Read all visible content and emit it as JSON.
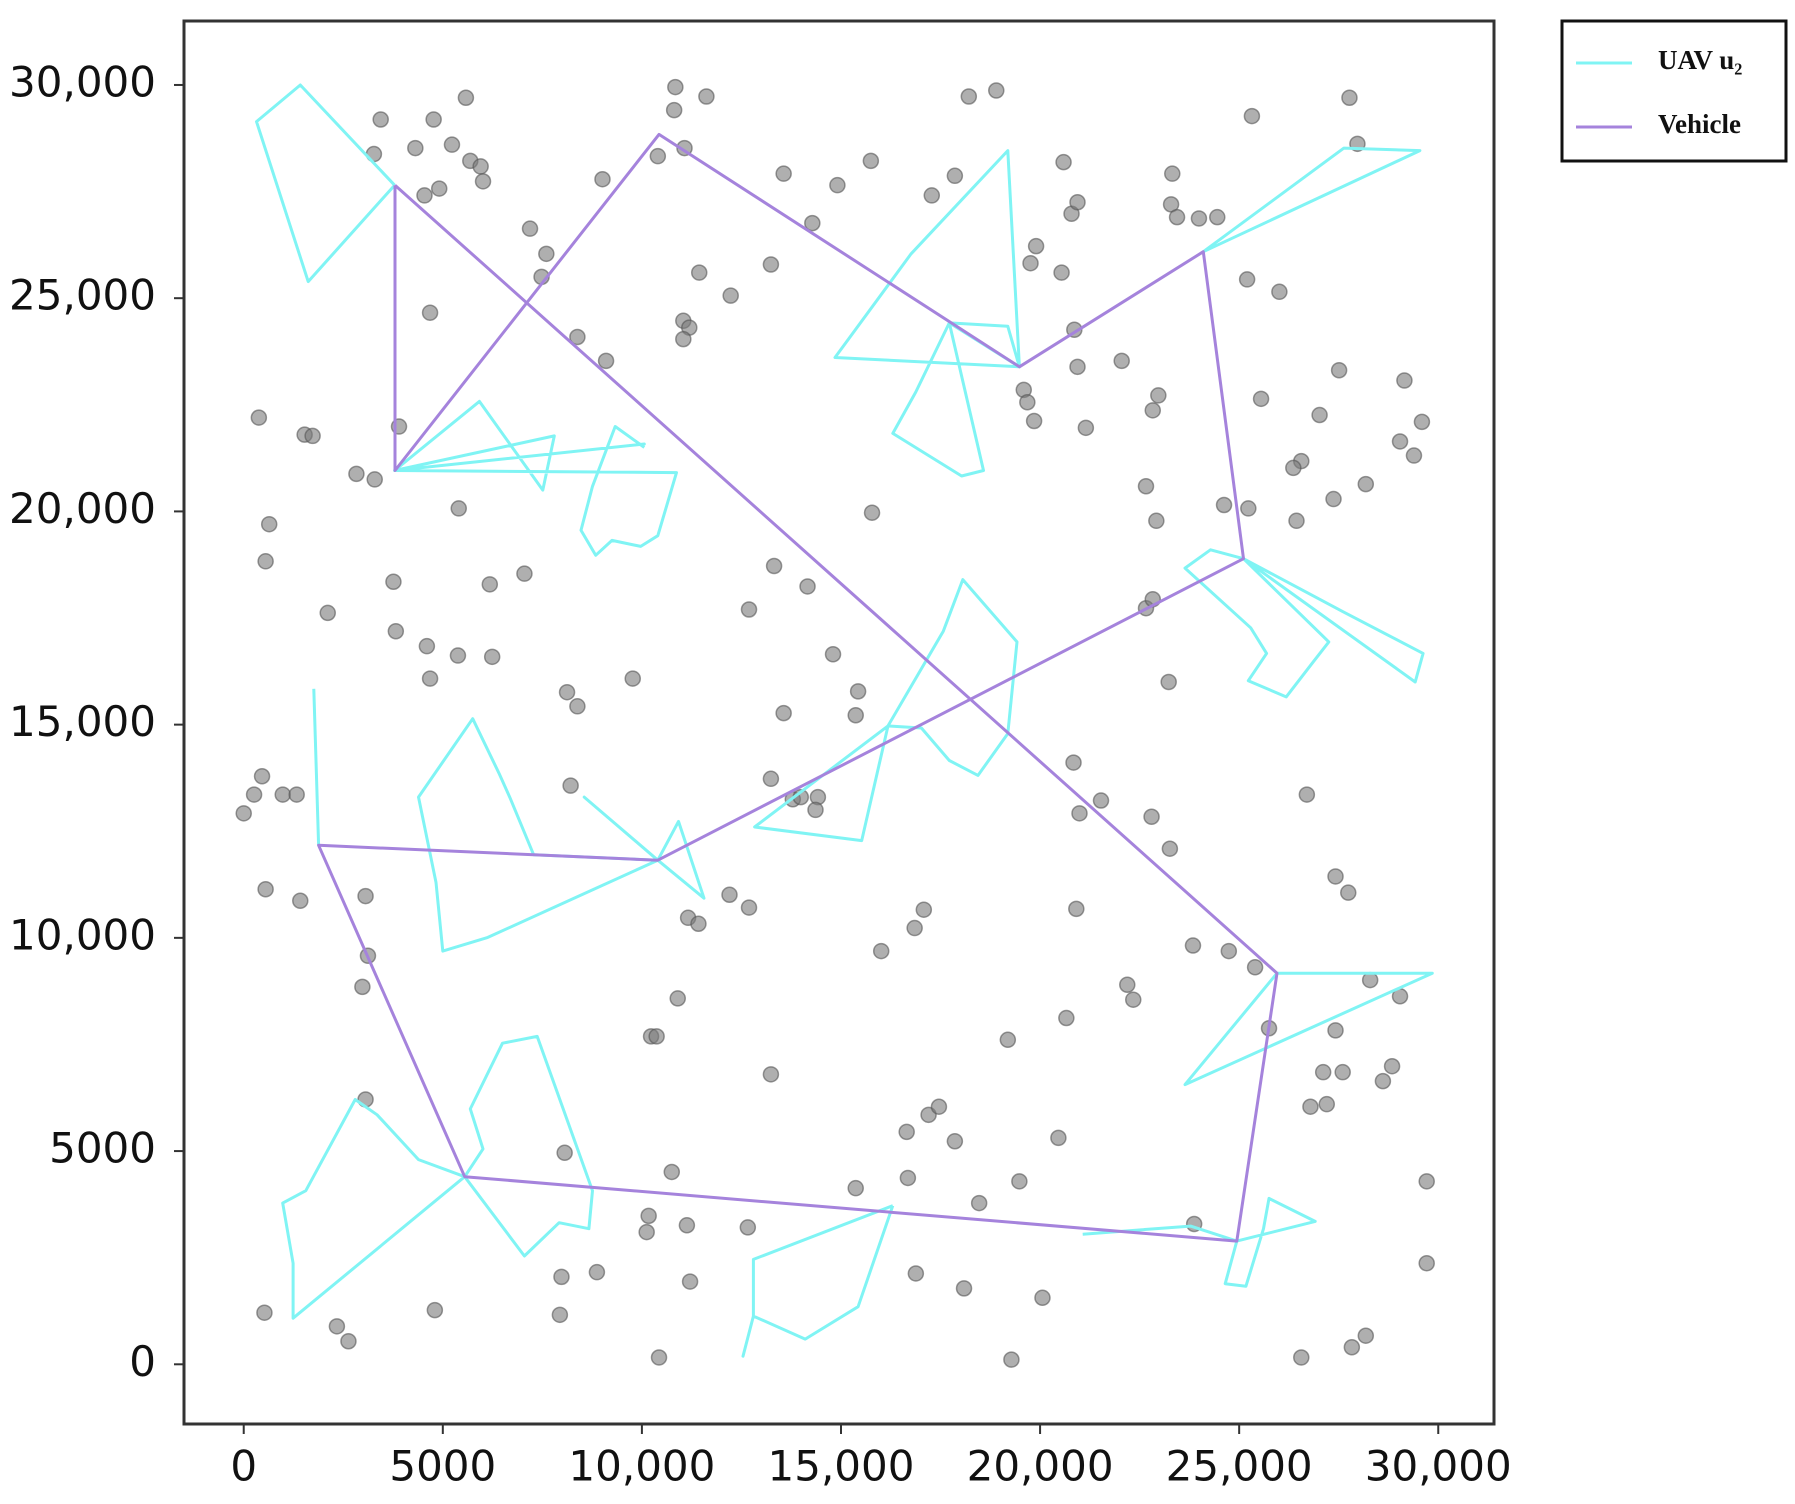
{
  "chart_data": {
    "type": "line",
    "xlim": [
      -1500,
      31400
    ],
    "ylim": [
      -1400,
      31500
    ],
    "xticks": [
      0,
      5000,
      {
        "value": 10000,
        "label": "10,000"
      },
      {
        "value": 15000,
        "label": "15,000"
      },
      {
        "value": 20000,
        "label": "20,000"
      },
      {
        "value": 25000,
        "label": "25,000"
      },
      {
        "value": 30000,
        "label": "30,000"
      }
    ],
    "yticks": [
      0,
      5000,
      {
        "value": 10000,
        "label": "10,000"
      },
      {
        "value": 15000,
        "label": "15,000"
      },
      {
        "value": 20000,
        "label": "20,000"
      },
      {
        "value": 25000,
        "label": "25,000"
      },
      {
        "value": 30000,
        "label": "30,000"
      }
    ],
    "grid": false,
    "legend": "outside-upper-right",
    "points": {
      "color": "#7a7a7a",
      "x": [
        0,
        460,
        260,
        980,
        1330,
        550,
        1420,
        380,
        640,
        550,
        2110,
        1530,
        1730,
        2830,
        3290,
        3440,
        3270,
        4310,
        4770,
        5580,
        5230,
        5690,
        5950,
        6010,
        4910,
        4540,
        4680,
        3900,
        3760,
        3820,
        4600,
        5380,
        6240,
        4680,
        5400,
        6180,
        7050,
        7190,
        7600,
        7480,
        8380,
        9100,
        9010,
        10840,
        10810,
        11620,
        10400,
        11070,
        11440,
        11040,
        11190,
        11040,
        12230,
        13240,
        13560,
        14280,
        14910,
        15750,
        17280,
        17860,
        18210,
        18900,
        20590,
        20790,
        20940,
        19900,
        19760,
        20540,
        20860,
        20940,
        19590,
        19680,
        19850,
        21150,
        22050,
        22970,
        22830,
        23320,
        23290,
        23440,
        23990,
        24450,
        25320,
        25200,
        26010,
        25550,
        27020,
        27510,
        27770,
        27970,
        29150,
        29590,
        29040,
        29390,
        26560,
        26360,
        27370,
        28180,
        22660,
        22920,
        24620,
        25230,
        26440,
        22660,
        22830,
        23230,
        15780,
        13320,
        14160,
        12690,
        14800,
        15430,
        15370,
        13560,
        9770,
        8120,
        8380,
        8210,
        13240,
        13790,
        13990,
        14420,
        14360,
        12200,
        12690,
        11160,
        11420,
        10900,
        17080,
        16850,
        16010,
        20840,
        20990,
        21530,
        22800,
        23260,
        20910,
        26700,
        27420,
        27740,
        23840,
        24740,
        25400,
        28290,
        29040,
        22190,
        22340,
        20660,
        19190,
        25750,
        27420,
        27110,
        27600,
        28840,
        28610,
        27200,
        26790,
        13240,
        10230,
        10370,
        3060,
        2980,
        3120,
        3060,
        16650,
        17200,
        17460,
        17860,
        20460,
        16680,
        15370,
        19480,
        18470,
        10750,
        10170,
        10120,
        11130,
        12660,
        8060,
        7980,
        8870,
        7940,
        11210,
        10430,
        16880,
        18090,
        20060,
        19280,
        26560,
        27830,
        28180,
        29710,
        29710,
        23870,
        4800,
        2340,
        2630,
        520
      ],
      "y": [
        12920,
        13790,
        13360,
        13360,
        13360,
        11140,
        10870,
        22200,
        19700,
        18830,
        17620,
        21800,
        21770,
        20880,
        20750,
        29190,
        28380,
        28520,
        29190,
        29700,
        28600,
        28220,
        28090,
        27740,
        27570,
        27410,
        24660,
        21990,
        18350,
        17190,
        16840,
        16620,
        16590,
        16080,
        20070,
        18290,
        18540,
        26630,
        26040,
        25500,
        24090,
        23530,
        27790,
        29950,
        29410,
        29730,
        28330,
        28520,
        25600,
        24470,
        24310,
        24040,
        25060,
        25790,
        27920,
        26760,
        27650,
        28220,
        27410,
        27870,
        29730,
        29870,
        28190,
        26980,
        27250,
        26220,
        25820,
        25600,
        24260,
        23390,
        22850,
        22560,
        22120,
        21960,
        23530,
        22720,
        22370,
        27920,
        27200,
        26900,
        26870,
        26900,
        29270,
        25440,
        25150,
        22640,
        22260,
        23310,
        29700,
        28620,
        23070,
        22100,
        21640,
        21310,
        21180,
        21020,
        20290,
        20640,
        20590,
        19780,
        20150,
        20070,
        19780,
        17730,
        17940,
        16000,
        19970,
        18720,
        18240,
        17700,
        16650,
        15780,
        15220,
        15270,
        16080,
        15760,
        15430,
        13570,
        13730,
        13250,
        13300,
        13300,
        13000,
        11010,
        10710,
        10470,
        10330,
        8580,
        10660,
        10230,
        9690,
        14110,
        12920,
        13220,
        12840,
        12090,
        10680,
        13360,
        11440,
        11060,
        9820,
        9690,
        9310,
        9010,
        8630,
        8900,
        8550,
        8120,
        7610,
        7880,
        7830,
        6850,
        6850,
        6990,
        6640,
        6100,
        6040,
        6800,
        7690,
        7690,
        6210,
        8850,
        9580,
        10980,
        5450,
        5850,
        6040,
        5230,
        5310,
        4370,
        4130,
        4290,
        3780,
        4510,
        3480,
        3100,
        3260,
        3210,
        4960,
        2050,
        2160,
        1160,
        1940,
        160,
        2130,
        1780,
        1560,
        110,
        160,
        400,
        670,
        2370,
        4290,
        3290,
        1270,
        890,
        540,
        1210
      ]
    },
    "series": [
      {
        "name": "UAV u₂",
        "color": "#80f4f4",
        "x": [
          3790,
          1420,
          320,
          1620,
          3790,
          null,
          3790,
          5920,
          7510,
          7800,
          3790,
          10060,
          3790,
          10870,
          10400,
          9970,
          9250,
          8840,
          8470,
          8760,
          9330,
          10060,
          null,
          19480,
          19190,
          16760,
          14850,
          19480,
          19190,
          17720,
          18580,
          18030,
          16300,
          16880,
          17720,
          19480,
          null,
          24100,
          27630,
          29540,
          24100,
          null,
          25110,
          24280,
          23640,
          25290,
          25690,
          25230,
          26180,
          26850,
          27250,
          25110,
          27600,
          29620,
          29420,
          25110,
          null,
          16180,
          15520,
          12830,
          16180,
          17570,
          18060,
          19420,
          19190,
          18440,
          17720,
          17020,
          16180,
          null,
          10400,
          8550,
          10400,
          10920,
          11560,
          10400,
          6130,
          5000,
          4830,
          4390,
          5750,
          6420,
          6680,
          7280,
          10400,
          null,
          1880,
          1760,
          null,
          5550,
          1240,
          1240,
          980,
          1560,
          2800,
          3350,
          4390,
          5550,
          6010,
          5690,
          6500,
          7370,
          8760,
          8670,
          7920,
          7050,
          5550,
          null,
          16300,
          12800,
          12800,
          12540,
          12800,
          14100,
          15430,
          16300,
          null,
          21070,
          23780,
          24940,
          24650,
          25170,
          25610,
          25750,
          26910,
          24940,
          null,
          25950,
          29850,
          23640,
          25950
        ],
        "y": [
          27650,
          30000,
          29140,
          25390,
          27650,
          null,
          20960,
          22580,
          20500,
          21770,
          20960,
          21580,
          20960,
          20910,
          19430,
          19180,
          19320,
          18970,
          19560,
          20590,
          21990,
          21500,
          null,
          23390,
          28460,
          26040,
          23610,
          23390,
          24340,
          24420,
          20960,
          20830,
          21830,
          22800,
          24420,
          23390,
          null,
          26090,
          28520,
          28460,
          26090,
          null,
          18890,
          19100,
          18670,
          17270,
          16670,
          16030,
          15650,
          16460,
          16940,
          18890,
          17650,
          16670,
          16000,
          18890,
          null,
          14970,
          12280,
          12600,
          14970,
          17190,
          18400,
          16940,
          14790,
          13810,
          14160,
          14920,
          14970,
          null,
          11820,
          13300,
          11820,
          12730,
          10930,
          11820,
          10010,
          9690,
          11300,
          13300,
          15140,
          13840,
          13300,
          11950,
          11820,
          null,
          12170,
          15840,
          null,
          4400,
          1080,
          2370,
          3780,
          4070,
          6210,
          5850,
          4800,
          4400,
          5050,
          5990,
          7530,
          7690,
          4070,
          3180,
          3320,
          2540,
          4400,
          null,
          3720,
          2460,
          1130,
          190,
          1130,
          590,
          1350,
          3720,
          null,
          3050,
          3240,
          2890,
          1890,
          1830,
          3180,
          3890,
          3350,
          2890,
          null,
          9170,
          9170,
          6560,
          9170
        ]
      },
      {
        "name": "Vehicle",
        "color": "#a583dc",
        "x": [
          3800,
          3800,
          10430,
          19480,
          24100,
          25110,
          10400,
          1880,
          5550,
          24940,
          25950,
          3800
        ],
        "y": [
          27650,
          20960,
          28840,
          23390,
          26090,
          18890,
          11820,
          12170,
          4400,
          2890,
          9170,
          27650
        ]
      }
    ]
  }
}
